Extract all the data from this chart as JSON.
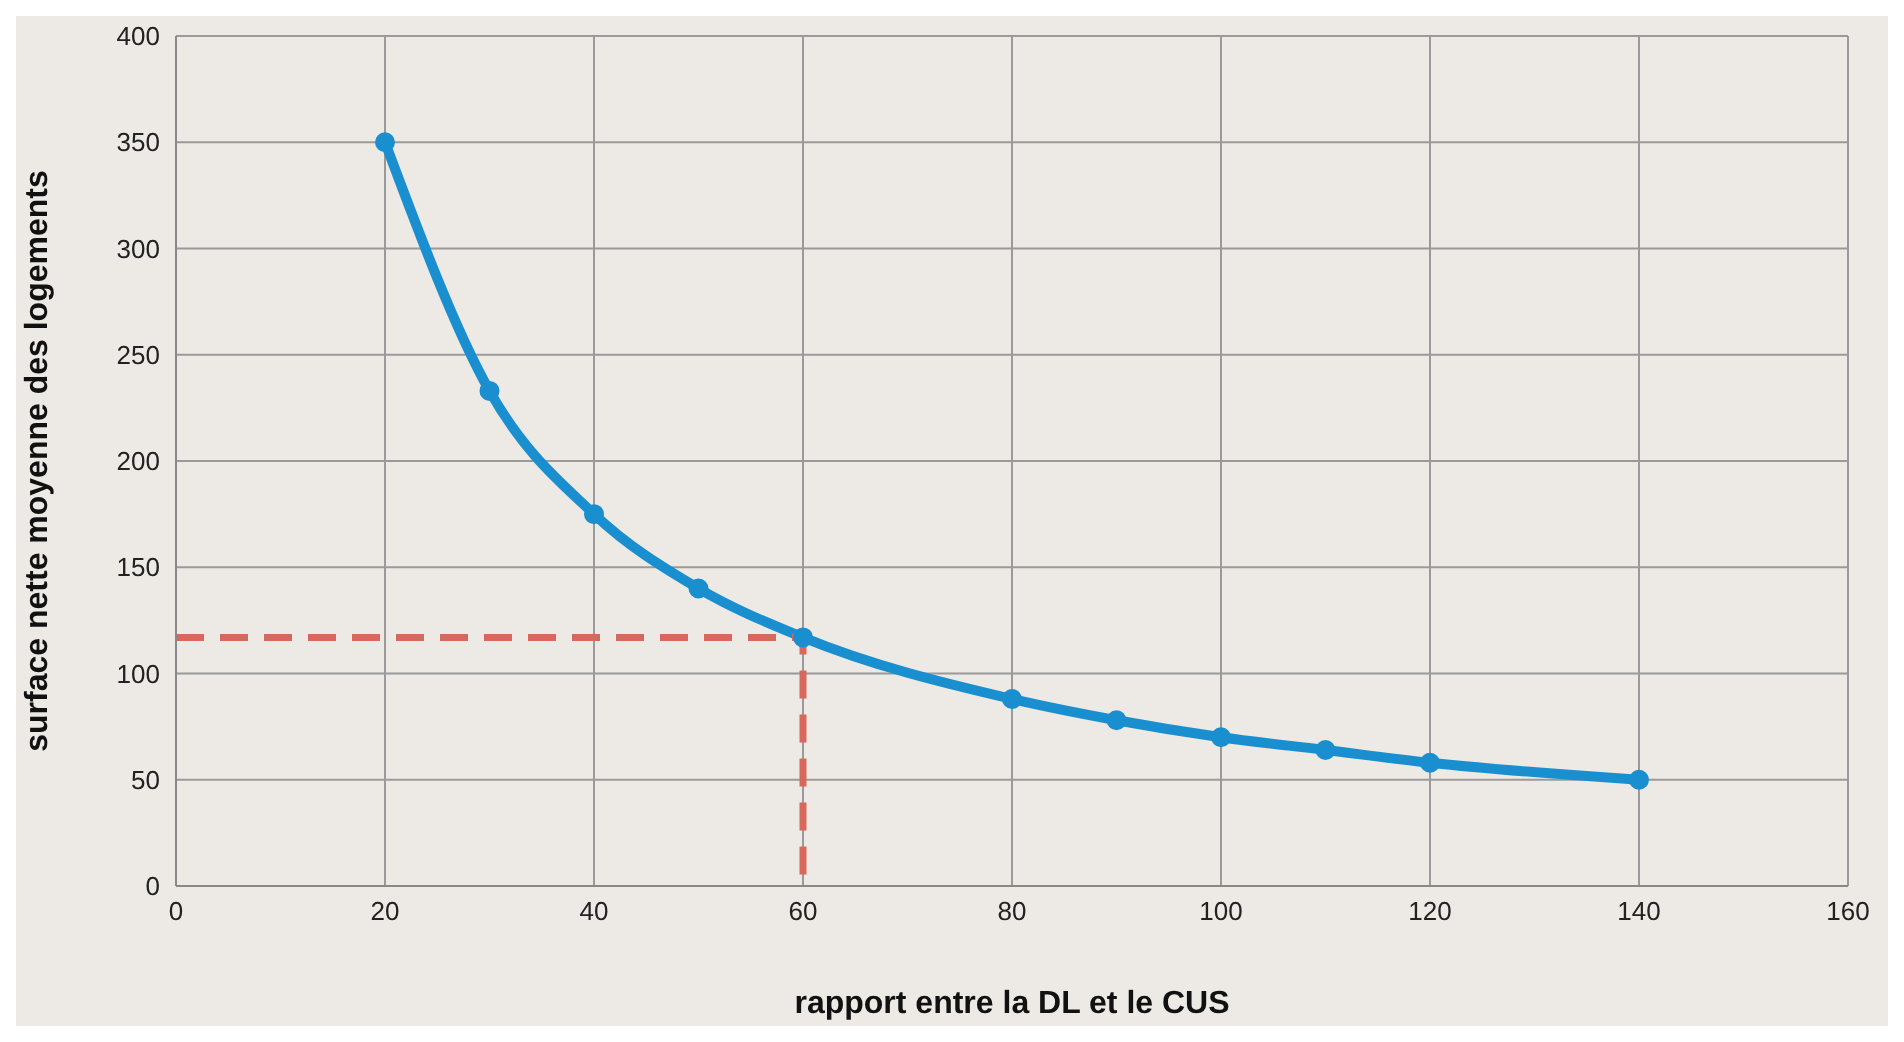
{
  "chart_data": {
    "type": "line",
    "xlabel": "rapport entre la DL et le CUS",
    "ylabel": "surface nette moyenne des logements",
    "xlim": [
      0,
      160
    ],
    "xticks": [
      0,
      20,
      40,
      60,
      80,
      100,
      120,
      140,
      160
    ],
    "ylim": [
      0,
      400
    ],
    "yticks": [
      0,
      50,
      100,
      150,
      200,
      250,
      300,
      350,
      400
    ],
    "grid": true,
    "series": [
      {
        "color": "#1a8fd0",
        "marker": "circle",
        "line_style": "solid",
        "x": [
          20,
          30,
          40,
          50,
          60,
          80,
          90,
          100,
          110,
          120,
          140
        ],
        "values": [
          350,
          233,
          175,
          140,
          117,
          88,
          78,
          70,
          64,
          58,
          50
        ]
      },
      {
        "color": "#d9685c",
        "marker": "none",
        "line_style": "dashed",
        "x": [
          0,
          60,
          60
        ],
        "values": [
          117,
          117,
          0
        ]
      }
    ]
  }
}
